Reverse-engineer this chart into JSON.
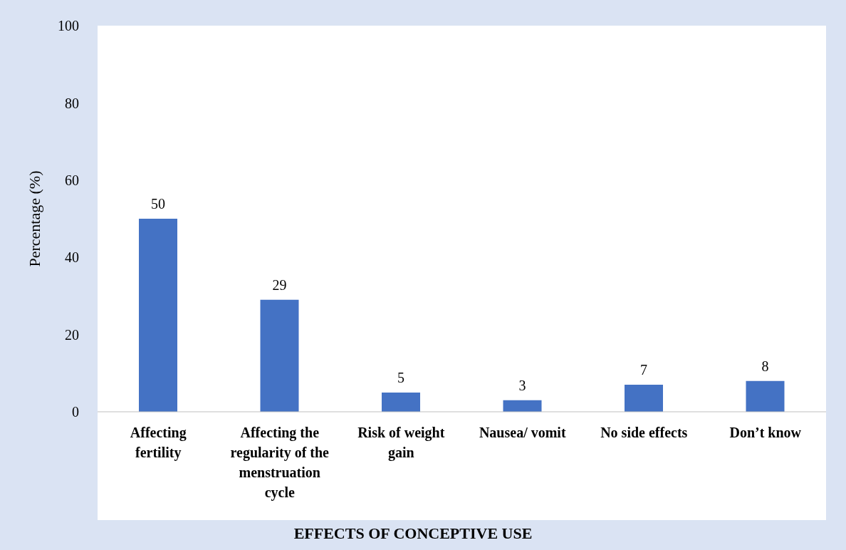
{
  "chart_data": {
    "type": "bar",
    "xlabel": "EFFECTS OF CONCEPTIVE USE",
    "ylabel": "Percentage (%)",
    "categories": [
      "Affecting fertility",
      "Affecting the regularity of the menstruation cycle",
      "Risk of weight gain",
      "Nausea/ vomit",
      "No side effects",
      "Don’t know"
    ],
    "values": [
      50,
      29,
      5,
      3,
      7,
      8
    ],
    "color": "#4472c4",
    "ylim": [
      0,
      100
    ],
    "yticks": [
      0,
      20,
      40,
      60,
      80,
      100
    ],
    "data_labels": true,
    "grid": false,
    "legend": false
  }
}
